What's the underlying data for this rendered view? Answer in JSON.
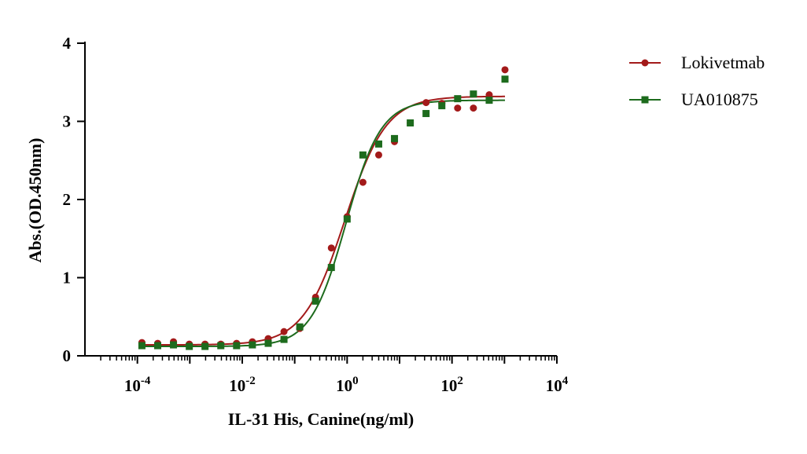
{
  "chart_data": {
    "type": "scatter",
    "title": "",
    "xlabel": "IL-31 His, Canine(ng/ml)",
    "ylabel": "Abs.(OD.450nm)",
    "xscale": "log10",
    "xlim_exponent": [
      -5,
      4
    ],
    "xticks": [
      {
        "base": "10",
        "exp": "-4",
        "e": -4
      },
      {
        "base": "10",
        "exp": "-2",
        "e": -2
      },
      {
        "base": "10",
        "exp": "0",
        "e": 0
      },
      {
        "base": "10",
        "exp": "2",
        "e": 2
      },
      {
        "base": "10",
        "exp": "4",
        "e": 4
      }
    ],
    "ylim": [
      0,
      4
    ],
    "yticks": [
      "0",
      "1",
      "2",
      "3",
      "4"
    ],
    "legend_position": "top-right",
    "series": [
      {
        "name": "Lokivetmab",
        "color": "#a31a1a",
        "marker": "circle",
        "x": [
          0.000122,
          0.000244,
          0.000488,
          0.000977,
          0.00195,
          0.0039,
          0.0078,
          0.0156,
          0.03125,
          0.0625,
          0.125,
          0.25,
          0.5,
          1,
          2,
          4,
          8,
          16,
          32,
          64,
          128,
          256,
          512,
          1024
        ],
        "y": [
          0.17,
          0.16,
          0.18,
          0.15,
          0.15,
          0.15,
          0.16,
          0.18,
          0.22,
          0.31,
          0.35,
          0.75,
          1.38,
          1.78,
          2.22,
          2.57,
          2.74,
          2.98,
          3.24,
          3.23,
          3.17,
          3.17,
          3.34,
          3.66
        ],
        "fit": {
          "bottom": 0.14,
          "top": 3.32,
          "ec50": 0.9,
          "hill": 1.1
        }
      },
      {
        "name": "UA010875",
        "color": "#1d6b1d",
        "marker": "square",
        "x": [
          0.000122,
          0.000244,
          0.000488,
          0.000977,
          0.00195,
          0.0039,
          0.0078,
          0.0156,
          0.03125,
          0.0625,
          0.125,
          0.25,
          0.5,
          1,
          2,
          4,
          8,
          16,
          32,
          64,
          128,
          256,
          512,
          1024
        ],
        "y": [
          0.13,
          0.13,
          0.14,
          0.12,
          0.12,
          0.13,
          0.13,
          0.14,
          0.16,
          0.21,
          0.37,
          0.7,
          1.13,
          1.75,
          2.57,
          2.71,
          2.78,
          2.98,
          3.1,
          3.2,
          3.29,
          3.35,
          3.27,
          3.54
        ],
        "fit": {
          "bottom": 0.12,
          "top": 3.27,
          "ec50": 0.95,
          "hill": 1.3
        }
      }
    ]
  }
}
